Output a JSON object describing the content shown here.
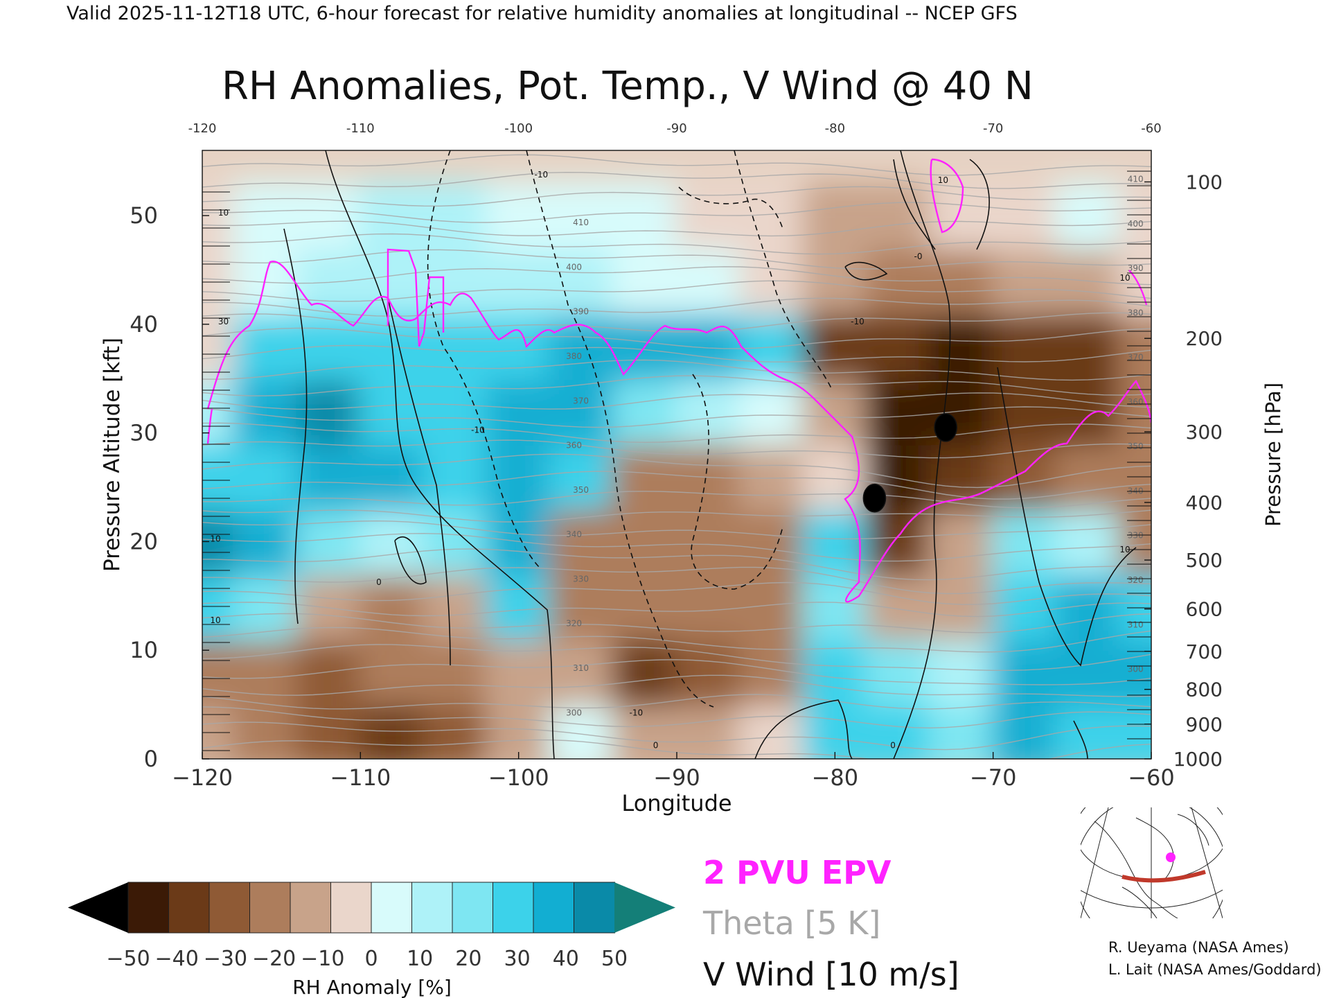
{
  "header": {
    "valid_line": "Valid 2025-11-12T18 UTC, 6-hour forecast for relative humidity anomalies at longitudinal -- NCEP GFS",
    "title": "RH Anomalies, Pot. Temp., V Wind @ 40 N"
  },
  "legend": {
    "epv_label": "2 PVU EPV",
    "theta_label": "Theta [5 K]",
    "vwind_label": "V Wind [10 m/s]",
    "epv_color": "#ff22ff",
    "theta_color": "#a8a8a8",
    "vwind_color": "#111111"
  },
  "colorbar": {
    "label": "RH Anomaly [%]",
    "ticks": [
      "−50",
      "−40",
      "−30",
      "−20",
      "−10",
      "0",
      "10",
      "20",
      "30",
      "40",
      "50"
    ],
    "colors": [
      "#000000",
      "#3b1a06",
      "#6b3a18",
      "#8f5a35",
      "#ad7d5c",
      "#c8a38a",
      "#ead6cb",
      "#d8fbfb",
      "#aef2f8",
      "#7ee6f2",
      "#3cd2ea",
      "#12aed2",
      "#0a8aa8",
      "#147f78"
    ]
  },
  "credits": {
    "line1": "R. Ueyama (NASA Ames)",
    "line2": "L. Lait (NASA Ames/Goddard)"
  },
  "chart_data": {
    "type": "heatmap",
    "title": "RH Anomalies, Pot. Temp., V Wind @ 40 N",
    "xlabel": "Longitude",
    "ylabel_left": "Pressure Altitude [kft]",
    "ylabel_right": "Pressure [hPa]",
    "xlim": [
      -120,
      -60
    ],
    "ylim": [
      0,
      56
    ],
    "x_ticks": [
      "−120",
      "−110",
      "−100",
      "−90",
      "−80",
      "−70",
      "−60"
    ],
    "top_x_ticks": [
      "-120",
      "-110",
      "-100",
      "-90",
      "-80",
      "-70",
      "-60"
    ],
    "y_ticks": [
      "0",
      "10",
      "20",
      "30",
      "40",
      "50"
    ],
    "pressure_ticks": [
      "1000",
      "900",
      "800",
      "700",
      "600",
      "500",
      "400",
      "300",
      "200",
      "100"
    ],
    "pressure_tick_kft": [
      0,
      3.2,
      6.4,
      9.9,
      13.8,
      18.3,
      23.6,
      30.1,
      38.7,
      53.1
    ],
    "lon": [
      -120,
      -116,
      -112,
      -108,
      -104,
      -100,
      -96,
      -92,
      -88,
      -84,
      -80,
      -76,
      -72,
      -68,
      -64,
      -60
    ],
    "alt_kft": [
      2,
      8,
      14,
      20,
      26,
      32,
      38,
      44,
      50
    ],
    "rh_anomaly": [
      [
        -15,
        -25,
        -28,
        -35,
        -28,
        -15,
        5,
        -10,
        -12,
        -8,
        25,
        30,
        20,
        35,
        30,
        30
      ],
      [
        -18,
        -20,
        -30,
        -25,
        -20,
        -10,
        -15,
        -35,
        -30,
        -25,
        25,
        20,
        10,
        38,
        35,
        35
      ],
      [
        25,
        22,
        -15,
        -18,
        -15,
        25,
        -20,
        -25,
        -22,
        -20,
        20,
        -15,
        -10,
        30,
        35,
        25
      ],
      [
        45,
        40,
        20,
        15,
        20,
        35,
        -20,
        -20,
        -25,
        -25,
        25,
        -40,
        -15,
        20,
        15,
        -20
      ],
      [
        30,
        30,
        40,
        35,
        30,
        35,
        30,
        -25,
        -20,
        -15,
        -5,
        -45,
        -40,
        -30,
        -25,
        -25
      ],
      [
        10,
        40,
        45,
        25,
        30,
        35,
        35,
        20,
        15,
        5,
        -15,
        -45,
        -45,
        -40,
        -35,
        -20
      ],
      [
        -5,
        25,
        30,
        30,
        30,
        25,
        40,
        35,
        40,
        30,
        -35,
        -40,
        -45,
        -40,
        -35,
        -20
      ],
      [
        -5,
        5,
        10,
        15,
        15,
        10,
        12,
        8,
        5,
        -5,
        -15,
        -20,
        -20,
        -15,
        -10,
        -8
      ],
      [
        -3,
        5,
        8,
        10,
        10,
        8,
        5,
        3,
        -3,
        -8,
        -10,
        -10,
        -8,
        -5,
        0,
        -3
      ]
    ],
    "theta_levels_K": [
      "300",
      "310",
      "320",
      "330",
      "340",
      "350",
      "360",
      "370",
      "380",
      "390",
      "400",
      "410"
    ],
    "vwind_contour_labels": [
      "0",
      "10",
      "-10",
      "30"
    ]
  }
}
